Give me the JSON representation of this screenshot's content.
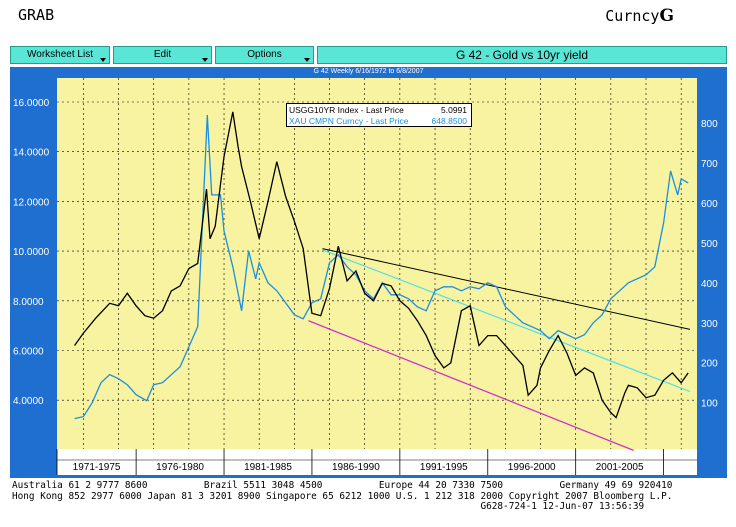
{
  "header": {
    "left": "GRAB",
    "right_text": "Curncy",
    "right_key": "G"
  },
  "menu": {
    "worksheet": "Worksheet List",
    "edit": "Edit",
    "options": "Options",
    "title": "G 42 - Gold vs 10yr yield"
  },
  "chart_subtitle": "G 42 Weekly 6/16/1972 to 6/8/2007",
  "legend": [
    {
      "label": "USGG10YR Index - Last Price",
      "value": "5.0991"
    },
    {
      "label": "XAU CMPN Curncy - Last Price",
      "value": "648.8500"
    }
  ],
  "colors": {
    "yield": "#000000",
    "gold": "#1a8fe0",
    "plot_bg": "#f7f3a0",
    "frame": "#1e6fd0",
    "menu": "#5ae6d6"
  },
  "chart_data": {
    "type": "line",
    "left_axis_ticks": [
      "16.0000",
      "14.0000",
      "12.0000",
      "10.0000",
      "8.0000",
      "6.0000",
      "4.0000"
    ],
    "right_axis_ticks": [
      "800",
      "700",
      "600",
      "500",
      "400",
      "300",
      "200",
      "100"
    ],
    "x_period_labels": [
      "1971-1975",
      "1976-1980",
      "1981-1985",
      "1986-1990",
      "1991-1995",
      "1996-2000",
      "2001-2005"
    ],
    "series": [
      {
        "name": "USGG10YR Index - Last Price",
        "axis": "left",
        "x": [
          1972.5,
          1973,
          1973.7,
          1974.5,
          1975,
          1975.5,
          1976,
          1976.5,
          1977,
          1977.5,
          1978,
          1978.5,
          1979,
          1979.5,
          1980,
          1980.2,
          1980.5,
          1981,
          1981.5,
          1981.8,
          1982,
          1982.5,
          1983,
          1983.5,
          1984,
          1984.5,
          1985,
          1985.5,
          1986,
          1986.5,
          1987,
          1987.5,
          1988,
          1988.5,
          1989,
          1989.5,
          1990,
          1990.5,
          1991,
          1991.5,
          1992,
          1992.5,
          1993,
          1993.5,
          1993.9,
          1994.5,
          1995,
          1995.5,
          1996,
          1996.5,
          1997,
          1997.5,
          1998,
          1998.3,
          1998.8,
          1999,
          1999.5,
          2000,
          2000.5,
          2001,
          2001.5,
          2002,
          2002.5,
          2003,
          2003.3,
          2003.8,
          2004,
          2004.5,
          2005,
          2005.5,
          2006,
          2006.5,
          2007,
          2007.4
        ],
        "y": [
          6.2,
          6.7,
          7.3,
          7.9,
          7.8,
          8.3,
          7.8,
          7.4,
          7.3,
          7.6,
          8.4,
          8.6,
          9.3,
          9.5,
          12.5,
          10.5,
          11.0,
          13.8,
          15.6,
          14.2,
          13.4,
          12.0,
          10.5,
          12.0,
          13.6,
          12.2,
          11.2,
          10.1,
          7.5,
          7.4,
          8.5,
          10.2,
          8.8,
          9.2,
          8.3,
          8.0,
          8.7,
          8.6,
          8.0,
          7.7,
          7.2,
          6.6,
          5.8,
          5.3,
          5.5,
          7.6,
          7.8,
          6.2,
          6.6,
          6.6,
          6.2,
          5.8,
          5.4,
          4.2,
          4.6,
          5.3,
          6.0,
          6.6,
          5.9,
          5.0,
          5.3,
          5.1,
          4.0,
          3.5,
          3.3,
          4.3,
          4.6,
          4.5,
          4.1,
          4.2,
          4.8,
          5.1,
          4.7,
          5.1
        ]
      },
      {
        "name": "XAU CMPN Curncy - Last Price",
        "axis": "right",
        "x": [
          1972.5,
          1973,
          1973.5,
          1974,
          1974.5,
          1975,
          1975.5,
          1976,
          1976.6,
          1977,
          1977.5,
          1978,
          1978.5,
          1979,
          1979.5,
          1980.05,
          1980.3,
          1980.8,
          1981,
          1981.5,
          1982,
          1982.4,
          1982.8,
          1983,
          1983.5,
          1984,
          1984.5,
          1985,
          1985.5,
          1986,
          1986.5,
          1987,
          1987.5,
          1988,
          1988.5,
          1989,
          1989.5,
          1990,
          1990.5,
          1991,
          1991.5,
          1992,
          1992.5,
          1993,
          1993.5,
          1994,
          1994.5,
          1995,
          1995.5,
          1996,
          1996.5,
          1997,
          1997.5,
          1998,
          1998.5,
          1999,
          1999.5,
          2000,
          2000.5,
          2001,
          2001.5,
          2002,
          2002.5,
          2003,
          2003.5,
          2004,
          2004.5,
          2005,
          2005.5,
          2006,
          2006.4,
          2006.8,
          2007,
          2007.4
        ],
        "y": [
          60,
          65,
          100,
          150,
          170,
          160,
          145,
          120,
          105,
          145,
          150,
          170,
          190,
          240,
          290,
          820,
          620,
          620,
          530,
          440,
          330,
          480,
          410,
          450,
          400,
          380,
          350,
          320,
          310,
          350,
          360,
          450,
          470,
          440,
          420,
          380,
          360,
          400,
          370,
          370,
          360,
          340,
          330,
          380,
          390,
          390,
          380,
          390,
          385,
          400,
          390,
          340,
          320,
          300,
          290,
          280,
          260,
          280,
          270,
          260,
          270,
          300,
          320,
          360,
          380,
          400,
          410,
          420,
          440,
          550,
          680,
          620,
          660,
          650
        ]
      }
    ],
    "trendlines": [
      "yield resistance",
      "gold support",
      "yield support"
    ]
  },
  "footer": [
    "Australia 61 2 9777 8600          Brazil 5511 3048 4500          Europe 44 20 7330 7500          Germany 49 69 920410",
    "Hong Kong 852 2977 6000 Japan 81 3 3201 8900 Singapore 65 6212 1000 U.S. 1 212 318 2000 Copyright 2007 Bloomberg L.P.",
    "                                                                                   G628-724-1 12-Jun-07 13:56:39"
  ]
}
